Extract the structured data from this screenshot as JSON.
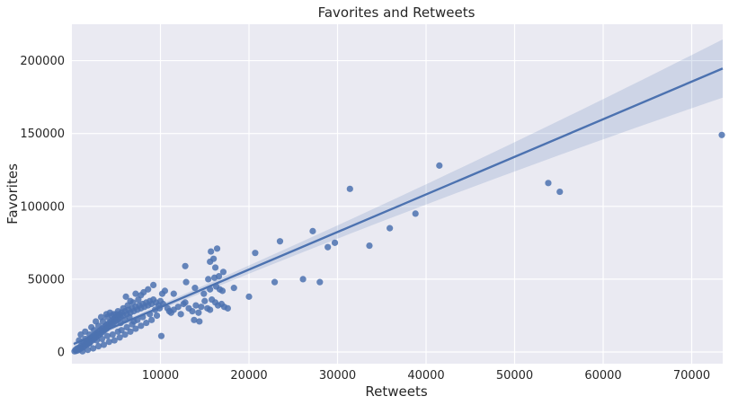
{
  "chart_data": {
    "type": "scatter",
    "title": "Favorites and Retweets",
    "xlabel": "Retweets",
    "ylabel": "Favorites",
    "xlim": [
      0,
      73500
    ],
    "ylim": [
      -8000,
      225000
    ],
    "xticks": [
      10000,
      20000,
      30000,
      40000,
      50000,
      60000,
      70000
    ],
    "yticks": [
      0,
      50000,
      100000,
      150000,
      200000
    ],
    "grid": true,
    "legend": "none",
    "background_color": "#eaeaf2",
    "grid_color": "#ffffff",
    "point_color": "#4c72b0",
    "regression": {
      "slope": 2.58,
      "intercept": 5000,
      "ci_lower_at_xmax": 175000,
      "ci_upper_at_xmax": 215000
    },
    "points": [
      [
        300,
        500
      ],
      [
        400,
        1500
      ],
      [
        500,
        800
      ],
      [
        600,
        2500
      ],
      [
        700,
        1200
      ],
      [
        800,
        3000
      ],
      [
        900,
        2000
      ],
      [
        1000,
        4000
      ],
      [
        1100,
        2800
      ],
      [
        1200,
        5000
      ],
      [
        1300,
        3500
      ],
      [
        1400,
        6000
      ],
      [
        1500,
        4500
      ],
      [
        1600,
        7000
      ],
      [
        1700,
        5200
      ],
      [
        1800,
        8000
      ],
      [
        1900,
        6000
      ],
      [
        2000,
        9000
      ],
      [
        2100,
        7000
      ],
      [
        2200,
        10000
      ],
      [
        2300,
        8000
      ],
      [
        2400,
        11000
      ],
      [
        2500,
        9000
      ],
      [
        2600,
        12000
      ],
      [
        2700,
        10000
      ],
      [
        2800,
        13000
      ],
      [
        2900,
        11000
      ],
      [
        3000,
        14000
      ],
      [
        3100,
        12000
      ],
      [
        3200,
        15000
      ],
      [
        3300,
        13000
      ],
      [
        3400,
        16000
      ],
      [
        3500,
        14000
      ],
      [
        3600,
        17000
      ],
      [
        3700,
        15000
      ],
      [
        3800,
        18000
      ],
      [
        3900,
        16000
      ],
      [
        4000,
        19000
      ],
      [
        4100,
        17000
      ],
      [
        4200,
        20000
      ],
      [
        4300,
        18000
      ],
      [
        4400,
        21000
      ],
      [
        4500,
        19000
      ],
      [
        4600,
        22000
      ],
      [
        4700,
        20000
      ],
      [
        4800,
        23000
      ],
      [
        4900,
        21000
      ],
      [
        5000,
        24000
      ],
      [
        5100,
        22000
      ],
      [
        5200,
        25000
      ],
      [
        5300,
        23000
      ],
      [
        5400,
        26000
      ],
      [
        5500,
        24000
      ],
      [
        5600,
        27000
      ],
      [
        5800,
        25000
      ],
      [
        6000,
        28000
      ],
      [
        6200,
        26000
      ],
      [
        6400,
        29000
      ],
      [
        6600,
        27000
      ],
      [
        6800,
        30000
      ],
      [
        7000,
        28000
      ],
      [
        7200,
        31000
      ],
      [
        7400,
        29000
      ],
      [
        7600,
        32000
      ],
      [
        7800,
        30000
      ],
      [
        8000,
        33000
      ],
      [
        8200,
        31000
      ],
      [
        8400,
        34000
      ],
      [
        8600,
        32000
      ],
      [
        8800,
        35000
      ],
      [
        9000,
        33000
      ],
      [
        9200,
        36000
      ],
      [
        9500,
        34000
      ],
      [
        1500,
        9000
      ],
      [
        2000,
        12000
      ],
      [
        2500,
        15000
      ],
      [
        3000,
        18000
      ],
      [
        3500,
        21000
      ],
      [
        4000,
        24000
      ],
      [
        4500,
        25000
      ],
      [
        5000,
        26000
      ],
      [
        5500,
        20000
      ],
      [
        6000,
        22000
      ],
      [
        6500,
        24000
      ],
      [
        7000,
        21000
      ],
      [
        1200,
        500
      ],
      [
        1800,
        1500
      ],
      [
        2400,
        2500
      ],
      [
        3000,
        4000
      ],
      [
        3600,
        5000
      ],
      [
        4200,
        7000
      ],
      [
        4800,
        8000
      ],
      [
        5400,
        10000
      ],
      [
        6000,
        12000
      ],
      [
        6600,
        14000
      ],
      [
        7200,
        16000
      ],
      [
        7800,
        18000
      ],
      [
        8400,
        20000
      ],
      [
        9000,
        22000
      ],
      [
        9600,
        25000
      ],
      [
        2200,
        17000
      ],
      [
        2700,
        21000
      ],
      [
        3300,
        24000
      ],
      [
        3900,
        26000
      ],
      [
        4300,
        27000
      ],
      [
        4700,
        26000
      ],
      [
        5200,
        28000
      ],
      [
        5800,
        30000
      ],
      [
        6300,
        32000
      ],
      [
        6900,
        34000
      ],
      [
        7500,
        36000
      ],
      [
        7200,
        40000
      ],
      [
        7800,
        39000
      ],
      [
        8100,
        41000
      ],
      [
        8600,
        43000
      ],
      [
        9200,
        46000
      ],
      [
        6100,
        38000
      ],
      [
        6600,
        35000
      ],
      [
        1000,
        12000
      ],
      [
        1500,
        14000
      ],
      [
        800,
        8000
      ],
      [
        2000,
        6000
      ],
      [
        2800,
        8000
      ],
      [
        3400,
        9000
      ],
      [
        4000,
        11000
      ],
      [
        4600,
        12000
      ],
      [
        5200,
        14000
      ],
      [
        5600,
        15000
      ],
      [
        6200,
        17000
      ],
      [
        6800,
        19000
      ],
      [
        7400,
        22000
      ],
      [
        8000,
        24000
      ],
      [
        8800,
        26000
      ],
      [
        9400,
        29000
      ],
      [
        9800,
        32000
      ],
      [
        10000,
        35000
      ],
      [
        10200,
        40000
      ],
      [
        10500,
        42000
      ],
      [
        9900,
        30000
      ],
      [
        10300,
        33000
      ],
      [
        10800,
        30000
      ],
      [
        11000,
        28000
      ],
      [
        11200,
        27000
      ],
      [
        11500,
        29000
      ],
      [
        12000,
        31000
      ],
      [
        12300,
        26000
      ],
      [
        12600,
        33000
      ],
      [
        12800,
        34000
      ],
      [
        13200,
        30000
      ],
      [
        13600,
        28000
      ],
      [
        14000,
        32000
      ],
      [
        14300,
        27000
      ],
      [
        14600,
        31000
      ],
      [
        15000,
        35000
      ],
      [
        15300,
        30000
      ],
      [
        15600,
        29000
      ],
      [
        15800,
        36000
      ],
      [
        16200,
        34000
      ],
      [
        16500,
        32000
      ],
      [
        16900,
        33000
      ],
      [
        17200,
        31000
      ],
      [
        17600,
        30000
      ],
      [
        13800,
        22000
      ],
      [
        14400,
        21000
      ],
      [
        10100,
        11000
      ],
      [
        11500,
        40000
      ],
      [
        12900,
        48000
      ],
      [
        13900,
        44000
      ],
      [
        14900,
        40000
      ],
      [
        15600,
        43000
      ],
      [
        16300,
        45000
      ],
      [
        16700,
        43000
      ],
      [
        17000,
        42000
      ],
      [
        18300,
        44000
      ],
      [
        15400,
        50000
      ],
      [
        16100,
        51000
      ],
      [
        16600,
        52000
      ],
      [
        17100,
        55000
      ],
      [
        12800,
        59000
      ],
      [
        15600,
        62000
      ],
      [
        16000,
        64000
      ],
      [
        16200,
        58000
      ],
      [
        15700,
        69000
      ],
      [
        16400,
        71000
      ],
      [
        20000,
        38000
      ],
      [
        20700,
        68000
      ],
      [
        22900,
        48000
      ],
      [
        23500,
        76000
      ],
      [
        26100,
        50000
      ],
      [
        27200,
        83000
      ],
      [
        28000,
        48000
      ],
      [
        28900,
        72000
      ],
      [
        29700,
        75000
      ],
      [
        31400,
        112000
      ],
      [
        33600,
        73000
      ],
      [
        35900,
        85000
      ],
      [
        38800,
        95000
      ],
      [
        41500,
        128000
      ],
      [
        53800,
        116000
      ],
      [
        55100,
        110000
      ],
      [
        73400,
        149000
      ]
    ]
  }
}
